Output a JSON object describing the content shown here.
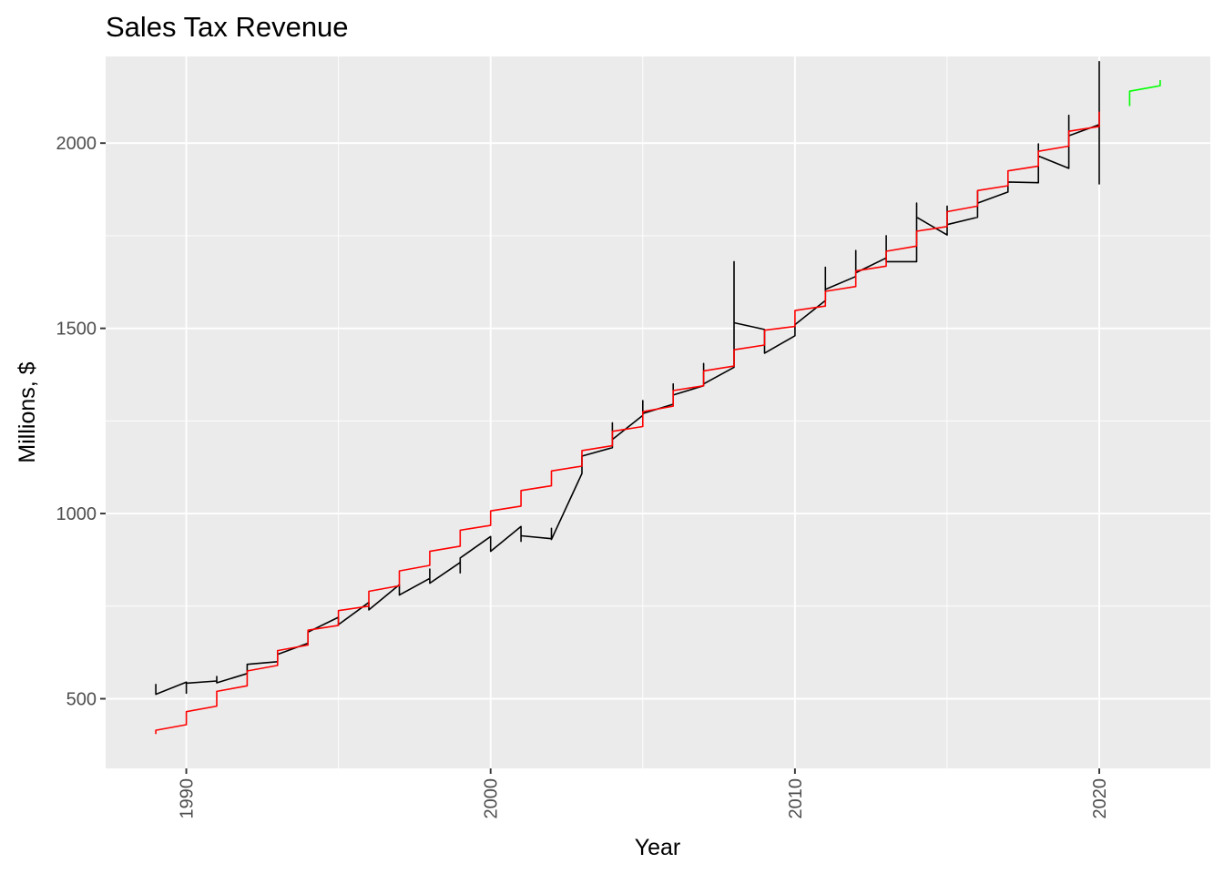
{
  "chart_data": {
    "type": "line",
    "title": "Sales Tax Revenue",
    "xlabel": "Year",
    "ylabel": "Millions, $",
    "xlim": [
      1987.35,
      2023.65
    ],
    "ylim": [
      312,
      2234
    ],
    "x_ticks": [
      1990,
      2000,
      2010,
      2020
    ],
    "x_tick_labels": [
      "1990",
      "2000",
      "2010",
      "2020"
    ],
    "y_ticks": [
      500,
      1000,
      1500,
      2000
    ],
    "y_tick_labels": [
      "500",
      "1000",
      "1500",
      "2000"
    ],
    "grid": true,
    "legend": "none",
    "colors": {
      "panel": "#EBEBEB",
      "grid": "#FFFFFF",
      "actual": "#000000",
      "fitted": "#FF0000",
      "forecast": "#00FF00"
    },
    "series": [
      {
        "key": "actual",
        "color": "#000000",
        "points": [
          [
            1989.0,
            540
          ],
          [
            1989.0,
            512
          ],
          [
            1990.0,
            545
          ],
          [
            1990.0,
            515
          ],
          [
            1990.0,
            542
          ],
          [
            1991.0,
            548
          ],
          [
            1991.0,
            560
          ],
          [
            1991.0,
            543
          ],
          [
            1992.0,
            568
          ],
          [
            1992.0,
            593
          ],
          [
            1993.0,
            600
          ],
          [
            1993.0,
            620
          ],
          [
            1994.0,
            650
          ],
          [
            1994.0,
            680
          ],
          [
            1995.0,
            720
          ],
          [
            1995.0,
            700
          ],
          [
            1996.0,
            760
          ],
          [
            1996.0,
            740
          ],
          [
            1997.0,
            808
          ],
          [
            1997.0,
            780
          ],
          [
            1998.0,
            825
          ],
          [
            1998.0,
            850
          ],
          [
            1998.0,
            812
          ],
          [
            1999.0,
            868
          ],
          [
            1999.0,
            840
          ],
          [
            1999.0,
            880
          ],
          [
            2000.0,
            938
          ],
          [
            2000.0,
            898
          ],
          [
            2001.0,
            965
          ],
          [
            2001.0,
            925
          ],
          [
            2001.0,
            940
          ],
          [
            2002.0,
            932
          ],
          [
            2002.0,
            960
          ],
          [
            2002.0,
            930
          ],
          [
            2003.0,
            1108
          ],
          [
            2003.0,
            1155
          ],
          [
            2004.0,
            1178
          ],
          [
            2004.0,
            1245
          ],
          [
            2004.0,
            1200
          ],
          [
            2005.0,
            1265
          ],
          [
            2005.0,
            1305
          ],
          [
            2005.0,
            1270
          ],
          [
            2006.0,
            1295
          ],
          [
            2006.0,
            1350
          ],
          [
            2006.0,
            1320
          ],
          [
            2007.0,
            1345
          ],
          [
            2007.0,
            1405
          ],
          [
            2007.0,
            1350
          ],
          [
            2008.0,
            1395
          ],
          [
            2008.0,
            1680
          ],
          [
            2008.0,
            1515
          ],
          [
            2009.0,
            1497
          ],
          [
            2009.0,
            1433
          ],
          [
            2010.0,
            1480
          ],
          [
            2010.0,
            1510
          ],
          [
            2011.0,
            1575
          ],
          [
            2011.0,
            1665
          ],
          [
            2011.0,
            1605
          ],
          [
            2012.0,
            1640
          ],
          [
            2012.0,
            1710
          ],
          [
            2012.0,
            1650
          ],
          [
            2013.0,
            1690
          ],
          [
            2013.0,
            1750
          ],
          [
            2013.0,
            1680
          ],
          [
            2014.0,
            1680
          ],
          [
            2014.0,
            1838
          ],
          [
            2014.0,
            1800
          ],
          [
            2015.0,
            1752
          ],
          [
            2015.0,
            1830
          ],
          [
            2015.0,
            1780
          ],
          [
            2016.0,
            1800
          ],
          [
            2016.0,
            1870
          ],
          [
            2016.0,
            1838
          ],
          [
            2017.0,
            1868
          ],
          [
            2017.0,
            1895
          ],
          [
            2018.0,
            1893
          ],
          [
            2018.0,
            1998
          ],
          [
            2018.0,
            1965
          ],
          [
            2019.0,
            1932
          ],
          [
            2019.0,
            2075
          ],
          [
            2019.0,
            2020
          ],
          [
            2020.0,
            2050
          ],
          [
            2020.0,
            2220
          ],
          [
            2020.0,
            1890
          ],
          [
            2020.0,
            2060
          ]
        ]
      },
      {
        "key": "fitted",
        "color": "#FF0000",
        "points": [
          [
            1989.0,
            405
          ],
          [
            1989.0,
            415
          ],
          [
            1990.0,
            430
          ],
          [
            1990.0,
            465
          ],
          [
            1991.0,
            480
          ],
          [
            1991.0,
            520
          ],
          [
            1992.0,
            535
          ],
          [
            1992.0,
            575
          ],
          [
            1993.0,
            590
          ],
          [
            1993.0,
            630
          ],
          [
            1994.0,
            645
          ],
          [
            1994.0,
            685
          ],
          [
            1995.0,
            698
          ],
          [
            1995.0,
            738
          ],
          [
            1996.0,
            750
          ],
          [
            1996.0,
            790
          ],
          [
            1997.0,
            805
          ],
          [
            1997.0,
            845
          ],
          [
            1998.0,
            860
          ],
          [
            1998.0,
            898
          ],
          [
            1999.0,
            912
          ],
          [
            1999.0,
            955
          ],
          [
            2000.0,
            968
          ],
          [
            2000.0,
            1007
          ],
          [
            2001.0,
            1020
          ],
          [
            2001.0,
            1062
          ],
          [
            2002.0,
            1075
          ],
          [
            2002.0,
            1115
          ],
          [
            2003.0,
            1128
          ],
          [
            2003.0,
            1170
          ],
          [
            2004.0,
            1183
          ],
          [
            2004.0,
            1222
          ],
          [
            2005.0,
            1235
          ],
          [
            2005.0,
            1275
          ],
          [
            2006.0,
            1290
          ],
          [
            2006.0,
            1332
          ],
          [
            2007.0,
            1345
          ],
          [
            2007.0,
            1385
          ],
          [
            2008.0,
            1398
          ],
          [
            2008.0,
            1442
          ],
          [
            2009.0,
            1455
          ],
          [
            2009.0,
            1495
          ],
          [
            2010.0,
            1505
          ],
          [
            2010.0,
            1548
          ],
          [
            2011.0,
            1560
          ],
          [
            2011.0,
            1600
          ],
          [
            2012.0,
            1613
          ],
          [
            2012.0,
            1655
          ],
          [
            2013.0,
            1668
          ],
          [
            2013.0,
            1708
          ],
          [
            2014.0,
            1722
          ],
          [
            2014.0,
            1762
          ],
          [
            2015.0,
            1775
          ],
          [
            2015.0,
            1815
          ],
          [
            2016.0,
            1830
          ],
          [
            2016.0,
            1872
          ],
          [
            2017.0,
            1885
          ],
          [
            2017.0,
            1925
          ],
          [
            2018.0,
            1938
          ],
          [
            2018.0,
            1978
          ],
          [
            2019.0,
            1992
          ],
          [
            2019.0,
            2032
          ],
          [
            2020.0,
            2045
          ],
          [
            2020.0,
            2085
          ]
        ]
      },
      {
        "key": "forecast",
        "color": "#00FF00",
        "points": [
          [
            2021.0,
            2100
          ],
          [
            2021.0,
            2140
          ],
          [
            2022.0,
            2155
          ],
          [
            2022.0,
            2170
          ]
        ]
      }
    ]
  }
}
